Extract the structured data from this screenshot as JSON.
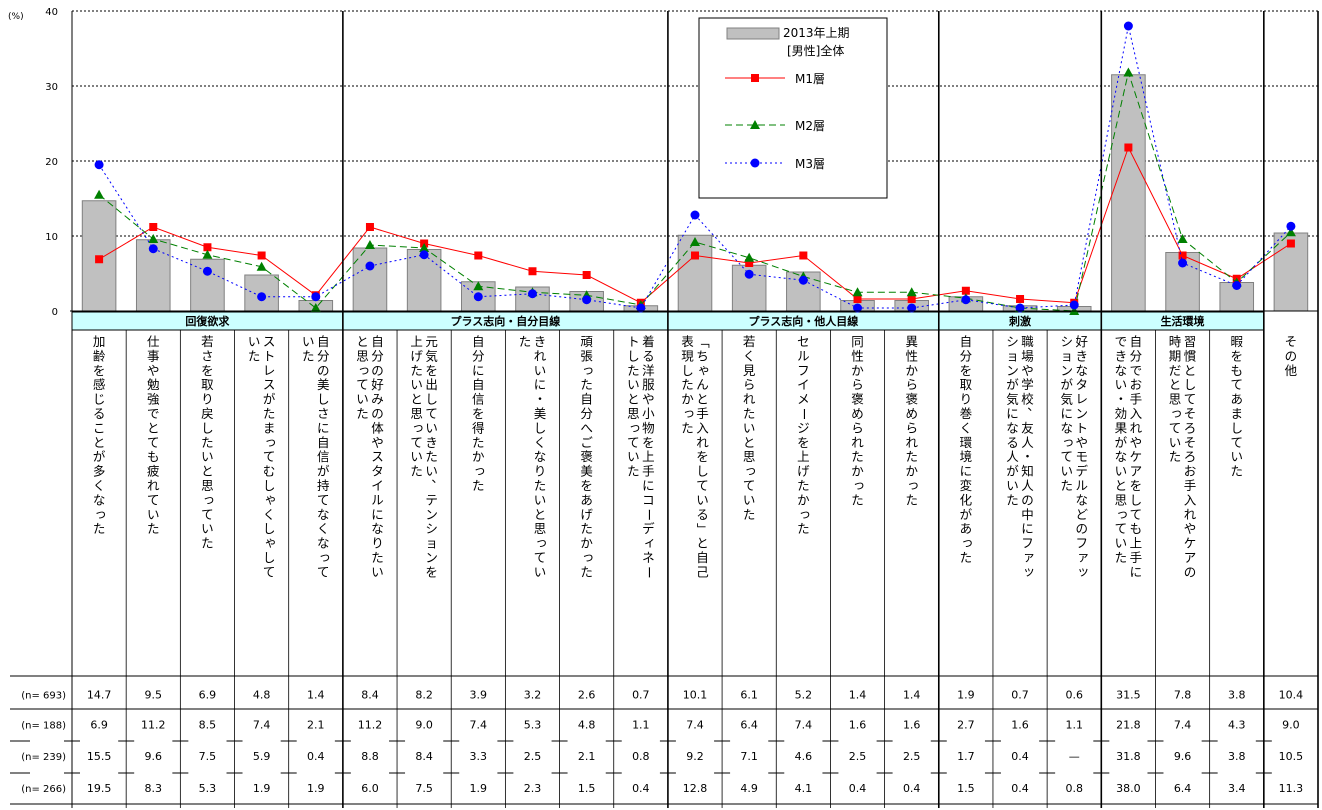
{
  "chart_data": {
    "type": "bar",
    "y_unit": "(%)",
    "ylim": [
      0,
      40
    ],
    "yticks": [
      0,
      10,
      20,
      30,
      40
    ],
    "groups": [
      {
        "label": "回復欲求",
        "span": [
          0,
          4
        ]
      },
      {
        "label": "プラス志向・自分目線",
        "span": [
          5,
          10
        ]
      },
      {
        "label": "プラス志向・他人目線",
        "span": [
          11,
          15
        ]
      },
      {
        "label": "刺激",
        "span": [
          16,
          18
        ]
      },
      {
        "label": "生活環境",
        "span": [
          19,
          21
        ]
      }
    ],
    "categories": [
      [
        "加齢を感じることが多くなった"
      ],
      [
        "仕事や勉強でとても疲れていた"
      ],
      [
        "若さを取り戻したいと思っていた"
      ],
      [
        "ストレスがたまってむしゃくしゃして",
        "いた"
      ],
      [
        "自分の美しさに自信が持てなくなって",
        "いた"
      ],
      [
        "自分の好みの体やスタイルになりたい",
        "と思っていた"
      ],
      [
        "元気を出していきたい、テンションを",
        "上げたいと思っていた"
      ],
      [
        "自分に自信を得たかった"
      ],
      [
        "きれいに・美しくなりたいと思ってい",
        "た"
      ],
      [
        "頑張った自分へご褒美をあげたかった"
      ],
      [
        "着る洋服や小物を上手にコーディネー",
        "トしたいと思っていた"
      ],
      [
        "「ちゃんと手入れをしている」と自己",
        "表現したかった"
      ],
      [
        "若く見られたいと思っていた"
      ],
      [
        "セルフイメージを上げたかった"
      ],
      [
        "同性から褒められたかった"
      ],
      [
        "異性から褒められたかった"
      ],
      [
        "自分を取り巻く環境に変化があった"
      ],
      [
        "職場や学校、友人・知人の中にファッ",
        "ションが気になる人がいた"
      ],
      [
        "好きなタレントやモデルなどのファッ",
        "ションが気になっていた"
      ],
      [
        "自分でお手入れやケアをしても上手に",
        "できない・効果がないと思っていた"
      ],
      [
        "習慣としてそろそろお手入れやケアの",
        "時期だと思っていた"
      ],
      [
        "暇をもてあましていた"
      ],
      [
        "その他"
      ]
    ],
    "series": [
      {
        "name": "2013年上期\n[男性]全体",
        "type": "bar",
        "n_label": "(n= 693)",
        "color": "#c0c0c0",
        "values": [
          14.7,
          9.5,
          6.9,
          4.8,
          1.4,
          8.4,
          8.2,
          3.9,
          3.2,
          2.6,
          0.7,
          10.1,
          6.1,
          5.2,
          1.4,
          1.4,
          1.9,
          0.7,
          0.6,
          31.5,
          7.8,
          3.8,
          10.4
        ],
        "display": [
          "14.7",
          "9.5",
          "6.9",
          "4.8",
          "1.4",
          "8.4",
          "8.2",
          "3.9",
          "3.2",
          "2.6",
          "0.7",
          "10.1",
          "6.1",
          "5.2",
          "1.4",
          "1.4",
          "1.9",
          "0.7",
          "0.6",
          "31.5",
          "7.8",
          "3.8",
          "10.4"
        ]
      },
      {
        "name": "M1層",
        "type": "line",
        "n_label": "(n= 188)",
        "color": "#ff0000",
        "marker": "square",
        "values": [
          6.9,
          11.2,
          8.5,
          7.4,
          2.1,
          11.2,
          9.0,
          7.4,
          5.3,
          4.8,
          1.1,
          7.4,
          6.4,
          7.4,
          1.6,
          1.6,
          2.7,
          1.6,
          1.1,
          21.8,
          7.4,
          4.3,
          9.0
        ],
        "display": [
          "6.9",
          "11.2",
          "8.5",
          "7.4",
          "2.1",
          "11.2",
          "9.0",
          "7.4",
          "5.3",
          "4.8",
          "1.1",
          "7.4",
          "6.4",
          "7.4",
          "1.6",
          "1.6",
          "2.7",
          "1.6",
          "1.1",
          "21.8",
          "7.4",
          "4.3",
          "9.0"
        ]
      },
      {
        "name": "M2層",
        "type": "line",
        "n_label": "(n= 239)",
        "color": "#008000",
        "marker": "triangle",
        "values": [
          15.5,
          9.6,
          7.5,
          5.9,
          0.4,
          8.8,
          8.4,
          3.3,
          2.5,
          2.1,
          0.8,
          9.2,
          7.1,
          4.6,
          2.5,
          2.5,
          1.7,
          0.4,
          0,
          31.8,
          9.6,
          3.8,
          10.5
        ],
        "display": [
          "15.5",
          "9.6",
          "7.5",
          "5.9",
          "0.4",
          "8.8",
          "8.4",
          "3.3",
          "2.5",
          "2.1",
          "0.8",
          "9.2",
          "7.1",
          "4.6",
          "2.5",
          "2.5",
          "1.7",
          "0.4",
          "—",
          "31.8",
          "9.6",
          "3.8",
          "10.5"
        ]
      },
      {
        "name": "M3層",
        "type": "line",
        "n_label": "(n= 266)",
        "color": "#0000ff",
        "marker": "circle",
        "values": [
          19.5,
          8.3,
          5.3,
          1.9,
          1.9,
          6.0,
          7.5,
          1.9,
          2.3,
          1.5,
          0.4,
          12.8,
          4.9,
          4.1,
          0.4,
          0.4,
          1.5,
          0.4,
          0.8,
          38.0,
          6.4,
          3.4,
          11.3
        ],
        "display": [
          "19.5",
          "8.3",
          "5.3",
          "1.9",
          "1.9",
          "6.0",
          "7.5",
          "1.9",
          "2.3",
          "1.5",
          "0.4",
          "12.8",
          "4.9",
          "4.1",
          "0.4",
          "0.4",
          "1.5",
          "0.4",
          "0.8",
          "38.0",
          "6.4",
          "3.4",
          "11.3"
        ]
      }
    ],
    "legend_position": "top-center"
  }
}
